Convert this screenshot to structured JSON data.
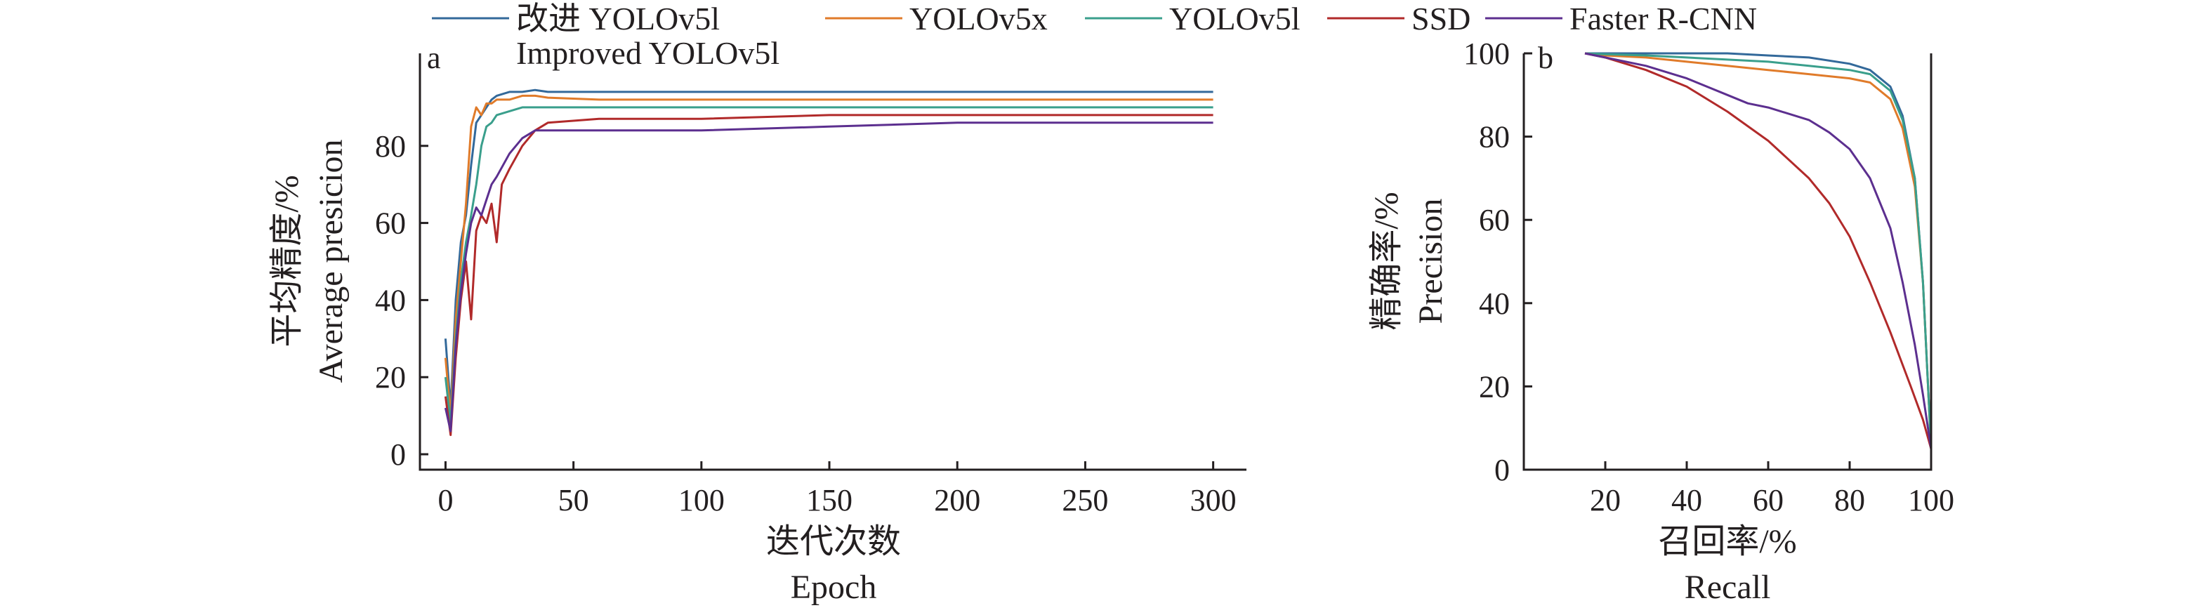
{
  "legend": {
    "items": [
      {
        "label": "改进 YOLOv5l",
        "sublabel": "Improved YOLOv5l",
        "color": "#33699a"
      },
      {
        "label": "YOLOv5x",
        "sublabel": "",
        "color": "#e07b2a"
      },
      {
        "label": "YOLOv5l",
        "sublabel": "",
        "color": "#3a9f8c"
      },
      {
        "label": "SSD",
        "sublabel": "",
        "color": "#b12a2a"
      },
      {
        "label": "Faster R-CNN",
        "sublabel": "",
        "color": "#5c2f8f"
      }
    ]
  },
  "panels": {
    "a": {
      "letter": "a",
      "xlabel_cn": "迭代次数",
      "xlabel_en": "Epoch",
      "ylabel_cn": "平均精度/%",
      "ylabel_en": "Average presicion"
    },
    "b": {
      "letter": "b",
      "xlabel_cn": "召回率/%",
      "xlabel_en": "Recall",
      "ylabel_cn": "精确率/%",
      "ylabel_en": "Precision"
    }
  },
  "chart_data": [
    {
      "panel": "a",
      "type": "line",
      "xlim": [
        -10,
        313
      ],
      "ylim": [
        -4,
        104
      ],
      "xticks": [
        0,
        50,
        100,
        150,
        200,
        250,
        300
      ],
      "yticks": [
        0,
        20,
        40,
        60,
        80
      ],
      "grid": false,
      "series": [
        {
          "name": "改进 YOLOv5l",
          "color": "#33699a",
          "x": [
            0,
            2,
            4,
            6,
            8,
            10,
            12,
            14,
            16,
            18,
            20,
            25,
            30,
            35,
            40,
            60,
            100,
            150,
            200,
            250,
            300
          ],
          "y": [
            30,
            12,
            40,
            55,
            62,
            75,
            86,
            88,
            90,
            92,
            93,
            94,
            94,
            94.5,
            94,
            94,
            94,
            94,
            94,
            94,
            94
          ]
        },
        {
          "name": "YOLOv5x",
          "color": "#e07b2a",
          "x": [
            0,
            2,
            4,
            6,
            8,
            10,
            12,
            14,
            16,
            18,
            20,
            25,
            30,
            35,
            40,
            60,
            100,
            150,
            200,
            250,
            300
          ],
          "y": [
            25,
            10,
            35,
            50,
            65,
            85,
            90,
            88,
            91,
            91,
            92,
            92,
            93,
            93,
            92.5,
            92,
            92,
            92,
            92,
            92,
            92
          ]
        },
        {
          "name": "YOLOv5l",
          "color": "#3a9f8c",
          "x": [
            0,
            2,
            4,
            6,
            8,
            10,
            12,
            14,
            16,
            18,
            20,
            25,
            30,
            35,
            40,
            60,
            100,
            150,
            200,
            250,
            300
          ],
          "y": [
            20,
            8,
            30,
            45,
            55,
            62,
            70,
            80,
            85,
            86,
            88,
            89,
            90,
            90,
            90,
            90,
            90,
            90,
            90,
            90,
            90
          ]
        },
        {
          "name": "SSD",
          "color": "#b12a2a",
          "x": [
            0,
            2,
            4,
            6,
            8,
            10,
            12,
            14,
            16,
            18,
            20,
            22,
            25,
            30,
            35,
            40,
            60,
            100,
            150,
            200,
            250,
            300
          ],
          "y": [
            15,
            5,
            25,
            40,
            50,
            35,
            58,
            62,
            60,
            65,
            55,
            70,
            74,
            80,
            84,
            86,
            87,
            87,
            88,
            88,
            88,
            88
          ]
        },
        {
          "name": "Faster R-CNN",
          "color": "#5c2f8f",
          "x": [
            0,
            2,
            4,
            6,
            8,
            10,
            12,
            14,
            16,
            18,
            20,
            25,
            30,
            35,
            40,
            60,
            100,
            150,
            200,
            250,
            300
          ],
          "y": [
            12,
            6,
            28,
            42,
            52,
            60,
            64,
            62,
            66,
            70,
            72,
            78,
            82,
            84,
            84,
            84,
            84,
            85,
            86,
            86,
            86
          ]
        }
      ]
    },
    {
      "panel": "b",
      "type": "line",
      "xlim": [
        0,
        100
      ],
      "ylim": [
        0,
        100
      ],
      "xticks": [
        20,
        40,
        60,
        80,
        100
      ],
      "yticks": [
        0,
        20,
        40,
        60,
        80,
        100
      ],
      "grid": false,
      "series": [
        {
          "name": "改进 YOLOv5l",
          "color": "#33699a",
          "x": [
            15,
            20,
            30,
            40,
            50,
            60,
            70,
            80,
            85,
            90,
            93,
            96,
            98,
            99,
            100
          ],
          "y": [
            100,
            100,
            100,
            100,
            100,
            99.5,
            99,
            97.5,
            96,
            92,
            85,
            70,
            45,
            25,
            5
          ]
        },
        {
          "name": "YOLOv5x",
          "color": "#e07b2a",
          "x": [
            15,
            20,
            30,
            40,
            50,
            60,
            70,
            80,
            85,
            90,
            93,
            96,
            98,
            99,
            100
          ],
          "y": [
            100,
            99.5,
            99,
            98,
            97,
            96,
            95,
            94,
            93,
            89,
            82,
            68,
            45,
            25,
            5
          ]
        },
        {
          "name": "YOLOv5l",
          "color": "#3a9f8c",
          "x": [
            15,
            20,
            30,
            40,
            50,
            60,
            70,
            80,
            85,
            90,
            93,
            96,
            98,
            99,
            100
          ],
          "y": [
            100,
            99.8,
            99.5,
            99,
            98.5,
            98,
            97,
            96,
            95,
            91,
            84,
            70,
            45,
            25,
            5
          ]
        },
        {
          "name": "SSD",
          "color": "#b12a2a",
          "x": [
            15,
            20,
            30,
            40,
            50,
            60,
            70,
            75,
            80,
            85,
            90,
            95,
            98,
            100
          ],
          "y": [
            100,
            99,
            96,
            92,
            86,
            79,
            70,
            64,
            56,
            45,
            33,
            20,
            12,
            5
          ]
        },
        {
          "name": "Faster R-CNN",
          "color": "#5c2f8f",
          "x": [
            15,
            20,
            30,
            40,
            50,
            55,
            60,
            70,
            75,
            80,
            85,
            90,
            93,
            96,
            98,
            100
          ],
          "y": [
            100,
            99,
            97,
            94,
            90,
            88,
            87,
            84,
            81,
            77,
            70,
            58,
            45,
            30,
            18,
            5
          ]
        }
      ]
    }
  ]
}
